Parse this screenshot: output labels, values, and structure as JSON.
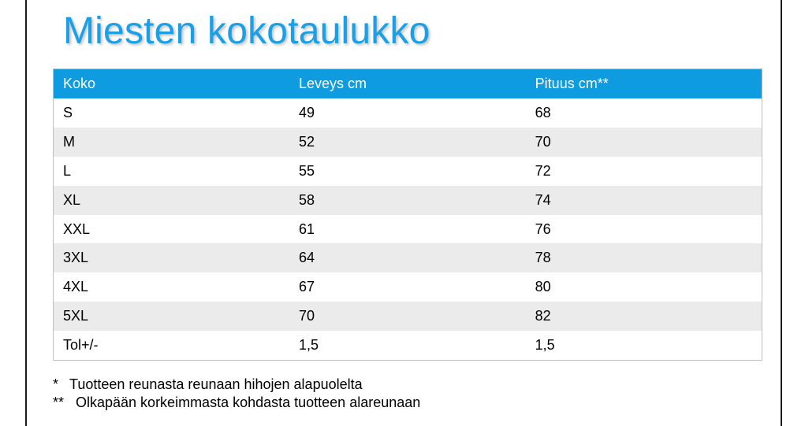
{
  "title": "Miesten kokotaulukko",
  "table": {
    "headers": [
      "Koko",
      "Leveys cm",
      "Pituus cm**"
    ],
    "rows": [
      [
        "S",
        "49",
        "68"
      ],
      [
        "M",
        "52",
        "70"
      ],
      [
        "L",
        "55",
        "72"
      ],
      [
        "XL",
        "58",
        "74"
      ],
      [
        "XXL",
        "61",
        "76"
      ],
      [
        "3XL",
        "64",
        "78"
      ],
      [
        "4XL",
        "67",
        "80"
      ],
      [
        "5XL",
        "70",
        "82"
      ],
      [
        "Tol+/-",
        "1,5",
        "1,5"
      ]
    ]
  },
  "notes": [
    {
      "mark": "*",
      "text": "Tuotteen reunasta reunaan hihojen alapuolelta"
    },
    {
      "mark": "**",
      "text": "Olkapään korkeimmasta kohdasta tuotteen alareunaan"
    }
  ],
  "colors": {
    "title": "#1aa0e6",
    "header_bg": "#0f9be0",
    "row_alt_bg": "#ebebeb"
  }
}
